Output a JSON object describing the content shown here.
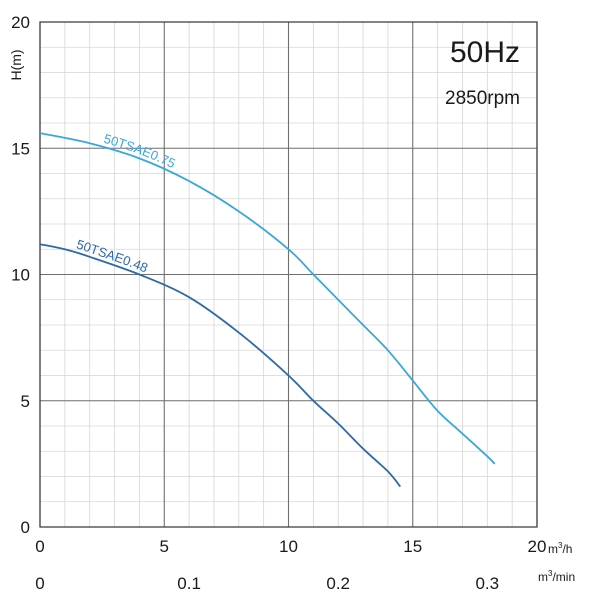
{
  "chart_data": {
    "type": "line",
    "ylabel": "H(m)",
    "x_unit_primary": "m3/h",
    "x_unit_secondary": "m3/min",
    "xlim": [
      0,
      20
    ],
    "ylim": [
      0,
      20
    ],
    "x_ticks": [
      "0",
      "5",
      "10",
      "15",
      "20"
    ],
    "y_ticks": [
      "0",
      "5",
      "10",
      "15",
      "20"
    ],
    "x2_ticks": [
      "0",
      "0.1",
      "0.2",
      "0.3"
    ],
    "x2_tick_values": [
      0,
      0.1,
      0.2,
      0.3
    ],
    "x2_per_x1": 0.016667,
    "grid": true,
    "annotations": [
      "50Hz",
      "2850rpm"
    ],
    "series": [
      {
        "name": "50TSAE0.75",
        "color": "#3aa7d8",
        "x": [
          0,
          2,
          4,
          6,
          8,
          10,
          11,
          12,
          13,
          14,
          15,
          16,
          17,
          18,
          18.3
        ],
        "y": [
          15.6,
          15.2,
          14.6,
          13.7,
          12.5,
          11.0,
          10.0,
          9.0,
          8.0,
          7.0,
          5.8,
          4.6,
          3.7,
          2.8,
          2.5
        ]
      },
      {
        "name": "50TSAE0.48",
        "color": "#2e6aa3",
        "x": [
          0,
          1,
          2,
          4,
          6,
          8,
          10,
          11,
          12,
          13,
          14,
          14.5
        ],
        "y": [
          11.2,
          11.0,
          10.7,
          10.0,
          9.1,
          7.7,
          6.0,
          5.0,
          4.1,
          3.1,
          2.2,
          1.6
        ]
      }
    ]
  }
}
